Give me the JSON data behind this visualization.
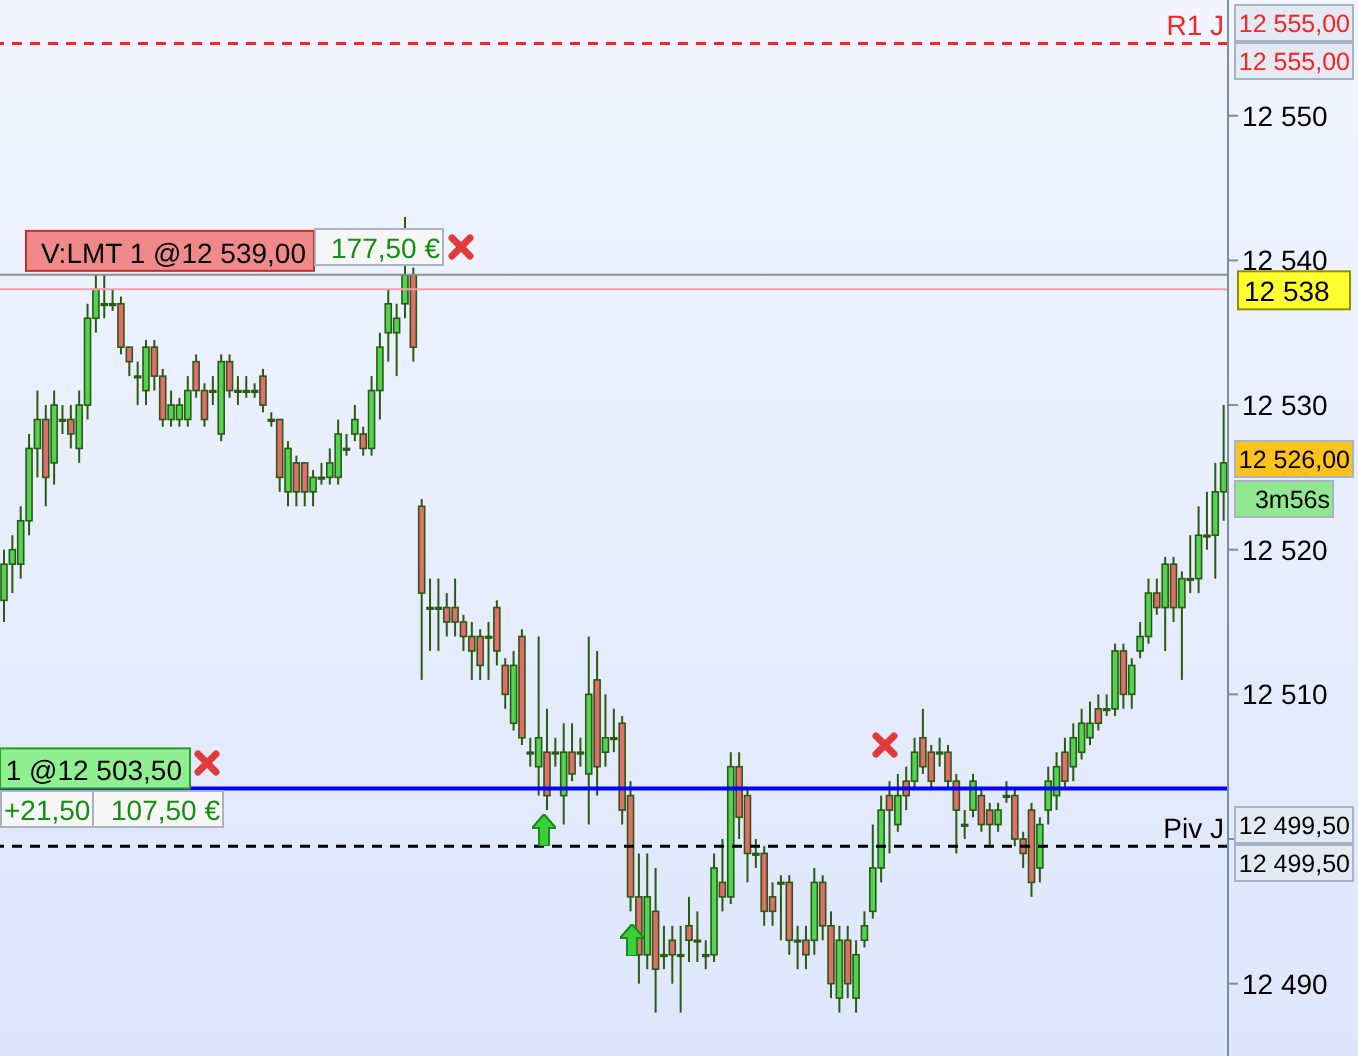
{
  "chart_data": {
    "type": "candlestick",
    "categories": [
      null,
      null,
      null,
      null,
      null,
      null,
      null,
      null,
      null,
      null,
      null,
      null,
      null,
      null,
      null,
      null,
      null,
      null,
      null,
      null,
      null,
      null,
      null,
      null,
      null,
      null,
      null,
      null,
      null,
      null,
      null,
      null,
      null,
      null,
      null,
      null,
      null,
      null,
      null,
      null,
      null,
      null,
      null,
      null,
      null,
      null,
      null,
      null,
      null,
      null,
      null,
      null,
      null,
      null,
      null,
      null,
      null,
      null,
      null,
      null,
      null,
      null,
      null,
      null,
      null,
      null,
      null,
      null,
      null,
      null,
      null,
      null,
      null,
      null,
      null,
      null,
      null,
      null,
      null,
      null,
      null,
      null,
      null,
      null,
      null,
      null,
      null,
      null,
      null,
      null,
      null,
      null,
      null,
      null,
      null,
      null,
      null,
      null,
      null,
      null,
      null,
      null,
      null,
      null,
      null,
      null,
      null,
      null,
      null,
      null,
      null,
      null,
      null,
      null,
      null,
      null,
      null,
      null,
      null,
      null,
      null,
      null,
      null,
      null,
      null,
      null,
      null,
      null,
      null,
      null,
      null,
      null,
      null,
      null,
      null,
      null,
      null,
      null,
      null,
      null,
      null,
      null,
      null,
      null,
      null,
      null,
      null
    ],
    "ohlc": [
      [
        12516.5,
        12520,
        12515,
        12519
      ],
      [
        12519,
        12521,
        12517,
        12520
      ],
      [
        12519,
        12523,
        12518,
        12522
      ],
      [
        12522,
        12528,
        12521,
        12527
      ],
      [
        12527,
        12531,
        12525,
        12529
      ],
      [
        12529,
        12530,
        12523,
        12525
      ],
      [
        12526,
        12531,
        12524.5,
        12530
      ],
      [
        12529,
        12530,
        12528,
        12529
      ],
      [
        12529,
        12530,
        12527,
        12528
      ],
      [
        12527,
        12531,
        12526,
        12530
      ],
      [
        12530,
        12537,
        12529,
        12536
      ],
      [
        12536,
        12539,
        12535,
        12538
      ],
      [
        12537,
        12539,
        12536,
        12537
      ],
      [
        12537,
        12538,
        12536.5,
        12537
      ],
      [
        12537,
        12537.5,
        12533.5,
        12534
      ],
      [
        12534,
        12534,
        12532,
        12533
      ],
      [
        12532,
        12533,
        12530,
        12532
      ],
      [
        12531,
        12534.5,
        12530,
        12534
      ],
      [
        12534,
        12534.5,
        12531,
        12532
      ],
      [
        12532,
        12532.5,
        12528.5,
        12529
      ],
      [
        12529,
        12531,
        12528.5,
        12530
      ],
      [
        12529,
        12530.5,
        12528.5,
        12530
      ],
      [
        12529,
        12532,
        12528.5,
        12531
      ],
      [
        12533,
        12533.5,
        12530.5,
        12531
      ],
      [
        12531,
        12531.5,
        12528.5,
        12529
      ],
      [
        12531,
        12532,
        12530,
        12531
      ],
      [
        12528,
        12533.5,
        12527.5,
        12533
      ],
      [
        12533,
        12533.5,
        12530.5,
        12531
      ],
      [
        12531,
        12532,
        12530,
        12531
      ],
      [
        12531,
        12532,
        12530.5,
        12531
      ],
      [
        12531,
        12531.5,
        12530.5,
        12531
      ],
      [
        12532,
        12532.5,
        12529.5,
        12530
      ],
      [
        12529,
        12529.5,
        12528.5,
        12529
      ],
      [
        12529,
        12529,
        12524,
        12525
      ],
      [
        12524,
        12527.5,
        12523,
        12527
      ],
      [
        12526,
        12526.5,
        12523,
        12524
      ],
      [
        12526,
        12526,
        12523,
        12524
      ],
      [
        12524,
        12525.5,
        12523,
        12525
      ],
      [
        12525,
        12526,
        12524.5,
        12525
      ],
      [
        12525,
        12527,
        12524.5,
        12526
      ],
      [
        12525,
        12529,
        12524.5,
        12528
      ],
      [
        12527,
        12528,
        12526.5,
        12527
      ],
      [
        12528,
        12530,
        12527.5,
        12529
      ],
      [
        12528,
        12528.5,
        12526.5,
        12527
      ],
      [
        12527,
        12532,
        12526.5,
        12531
      ],
      [
        12531,
        12535,
        12529,
        12534
      ],
      [
        12535,
        12538,
        12533,
        12537
      ],
      [
        12535,
        12537,
        12532,
        12536
      ],
      [
        12537,
        12543,
        12536,
        12539
      ],
      [
        12539,
        12539.5,
        12533,
        12534
      ],
      [
        12523,
        12523.5,
        12511,
        12517
      ],
      [
        12516,
        12518,
        12513,
        12516
      ],
      [
        12516,
        12518,
        12513,
        12516
      ],
      [
        12516,
        12517,
        12514,
        12515
      ],
      [
        12516,
        12518,
        12514,
        12515
      ],
      [
        12515,
        12515.5,
        12513,
        12514
      ],
      [
        12514,
        12515,
        12511,
        12513
      ],
      [
        12514,
        12514.5,
        12511,
        12512
      ],
      [
        12514,
        12515,
        12511,
        12514
      ],
      [
        12516,
        12516.5,
        12512,
        12513
      ],
      [
        12512,
        12512.5,
        12509,
        12510
      ],
      [
        12508,
        12513,
        12507.5,
        12512
      ],
      [
        12514,
        12514.5,
        12506.5,
        12507
      ],
      [
        12506,
        12507,
        12505,
        12506
      ],
      [
        12505,
        12514,
        12503,
        12507
      ],
      [
        12506,
        12509,
        12502,
        12503
      ],
      [
        12506,
        12507,
        12505,
        12506
      ],
      [
        12503,
        12508,
        12501,
        12506
      ],
      [
        12506,
        12508,
        12504,
        12504.5
      ],
      [
        12506,
        12507,
        12505,
        12506
      ],
      [
        12504.5,
        12514,
        12501,
        12510
      ],
      [
        12511,
        12513,
        12503,
        12505
      ],
      [
        12506,
        12510,
        12505,
        12507
      ],
      [
        12507,
        12509,
        12506,
        12507
      ],
      [
        12508,
        12508.5,
        12501,
        12502
      ],
      [
        12503,
        12504,
        12495,
        12496
      ],
      [
        12496,
        12499,
        12490,
        12492
      ],
      [
        12492,
        12499,
        12491,
        12496
      ],
      [
        12495,
        12498,
        12488,
        12491
      ],
      [
        12492,
        12494,
        12491,
        12492
      ],
      [
        12493,
        12494,
        12490,
        12492
      ],
      [
        12492,
        12494,
        12488,
        12492
      ],
      [
        12494,
        12496,
        12491.5,
        12493
      ],
      [
        12493,
        12495,
        12491.5,
        12493
      ],
      [
        12492,
        12493,
        12491,
        12492
      ],
      [
        12492,
        12499,
        12491.5,
        12498
      ],
      [
        12497,
        12500,
        12495,
        12496
      ],
      [
        12496,
        12506,
        12495.5,
        12505
      ],
      [
        12505,
        12506,
        12500,
        12501.5
      ],
      [
        12503,
        12503.5,
        12497,
        12499
      ],
      [
        12499,
        12500,
        12498,
        12499
      ],
      [
        12499,
        12499.5,
        12494,
        12495
      ],
      [
        12496,
        12497,
        12494,
        12495
      ],
      [
        12497,
        12497.5,
        12493,
        12497
      ],
      [
        12497,
        12497.5,
        12492,
        12493
      ],
      [
        12493,
        12494,
        12491,
        12493
      ],
      [
        12493,
        12494,
        12491,
        12492
      ],
      [
        12493,
        12498,
        12492,
        12497
      ],
      [
        12497,
        12497.5,
        12493,
        12494
      ],
      [
        12494,
        12495,
        12489,
        12490
      ],
      [
        12489,
        12494,
        12488,
        12493
      ],
      [
        12493,
        12494,
        12489,
        12490
      ],
      [
        12489,
        12493,
        12488,
        12492
      ],
      [
        12493,
        12495,
        12492.5,
        12494
      ],
      [
        12495,
        12501,
        12494.5,
        12498
      ],
      [
        12498,
        12503,
        12497,
        12502
      ],
      [
        12503,
        12504,
        12499,
        12502
      ],
      [
        12501,
        12504.5,
        12500.5,
        12503
      ],
      [
        12504,
        12505,
        12502,
        12503
      ],
      [
        12504,
        12507,
        12503.5,
        12506
      ],
      [
        12507,
        12509,
        12504.5,
        12505
      ],
      [
        12506,
        12506.5,
        12503.5,
        12504
      ],
      [
        12506,
        12507,
        12505,
        12506
      ],
      [
        12506,
        12506.5,
        12503.5,
        12504
      ],
      [
        12504,
        12504.5,
        12499,
        12502
      ],
      [
        12501,
        12502,
        12500,
        12501
      ],
      [
        12502,
        12504.5,
        12501.5,
        12504
      ],
      [
        12503,
        12503.5,
        12500.5,
        12501
      ],
      [
        12502,
        12502.5,
        12499.5,
        12501
      ],
      [
        12501,
        12502.5,
        12500.5,
        12502
      ],
      [
        12503,
        12504,
        12502.5,
        12503
      ],
      [
        12503,
        12503.5,
        12499.5,
        12500
      ],
      [
        12500,
        12500.5,
        12498,
        12499
      ],
      [
        12502,
        12502.5,
        12496,
        12497
      ],
      [
        12498,
        12501.5,
        12497,
        12501
      ],
      [
        12502,
        12505,
        12501,
        12504
      ],
      [
        12503,
        12506,
        12502,
        12505
      ],
      [
        12506,
        12507,
        12503.5,
        12504
      ],
      [
        12505,
        12508,
        12504,
        12507
      ],
      [
        12506,
        12509,
        12505.5,
        12508
      ],
      [
        12507,
        12509.5,
        12506.5,
        12508
      ],
      [
        12509,
        12510,
        12507.5,
        12508
      ],
      [
        12509,
        12510,
        12508.5,
        12509
      ],
      [
        12509,
        12513.5,
        12508.5,
        12513
      ],
      [
        12513,
        12513.5,
        12509,
        12510
      ],
      [
        12510,
        12512.5,
        12509,
        12512
      ],
      [
        12513,
        12515,
        12512.5,
        12514
      ],
      [
        12514,
        12518,
        12513.5,
        12517
      ],
      [
        12517,
        12518,
        12515.5,
        12516
      ],
      [
        12516,
        12519.5,
        12513,
        12519
      ],
      [
        12519,
        12519.5,
        12515,
        12516
      ],
      [
        12516,
        12518.5,
        12511,
        12518
      ],
      [
        12518,
        12521,
        12517,
        12518
      ],
      [
        12518,
        12523,
        12517,
        12521
      ],
      [
        12521,
        12524,
        12520,
        12521
      ],
      [
        12521,
        12526,
        12518,
        12524
      ],
      [
        12524,
        12530,
        12522,
        12526
      ]
    ],
    "ylim": [
      12485,
      12558
    ],
    "yticks": [
      {
        "value": 12490,
        "label": "12 490"
      },
      {
        "value": 12500,
        "label": null
      },
      {
        "value": 12510,
        "label": "12 510"
      },
      {
        "value": 12520,
        "label": "12 520"
      },
      {
        "value": 12530,
        "label": "12 530"
      },
      {
        "value": 12540,
        "label": "12 540"
      },
      {
        "value": 12550,
        "label": "12 550"
      }
    ],
    "tick_labels": "y",
    "ref_lines": [
      {
        "axis": "y",
        "value": 12555,
        "label": "R1 J",
        "color": "#ff2020",
        "line_style": "dashed"
      },
      {
        "axis": "y",
        "value": 12499.5,
        "label": "Piv J",
        "color": "#000000",
        "line_style": "dashed"
      },
      {
        "axis": "y",
        "value": 12503.5,
        "label": "1 @12 503,50",
        "color": "#0000ff"
      },
      {
        "axis": "y",
        "value": 12539,
        "label": "V:LMT 1 @12 539,00",
        "color": "#909090"
      },
      {
        "axis": "y",
        "value": 12538,
        "label": "12 538",
        "color": "#f0a0a8"
      }
    ],
    "annotations": [
      "177,50 €",
      "+21,50",
      "107,50 €",
      "12 555,00",
      "12 555,00",
      "12 526,00",
      "3m56s",
      "12 499,50",
      "12 499,50"
    ]
  }
}
